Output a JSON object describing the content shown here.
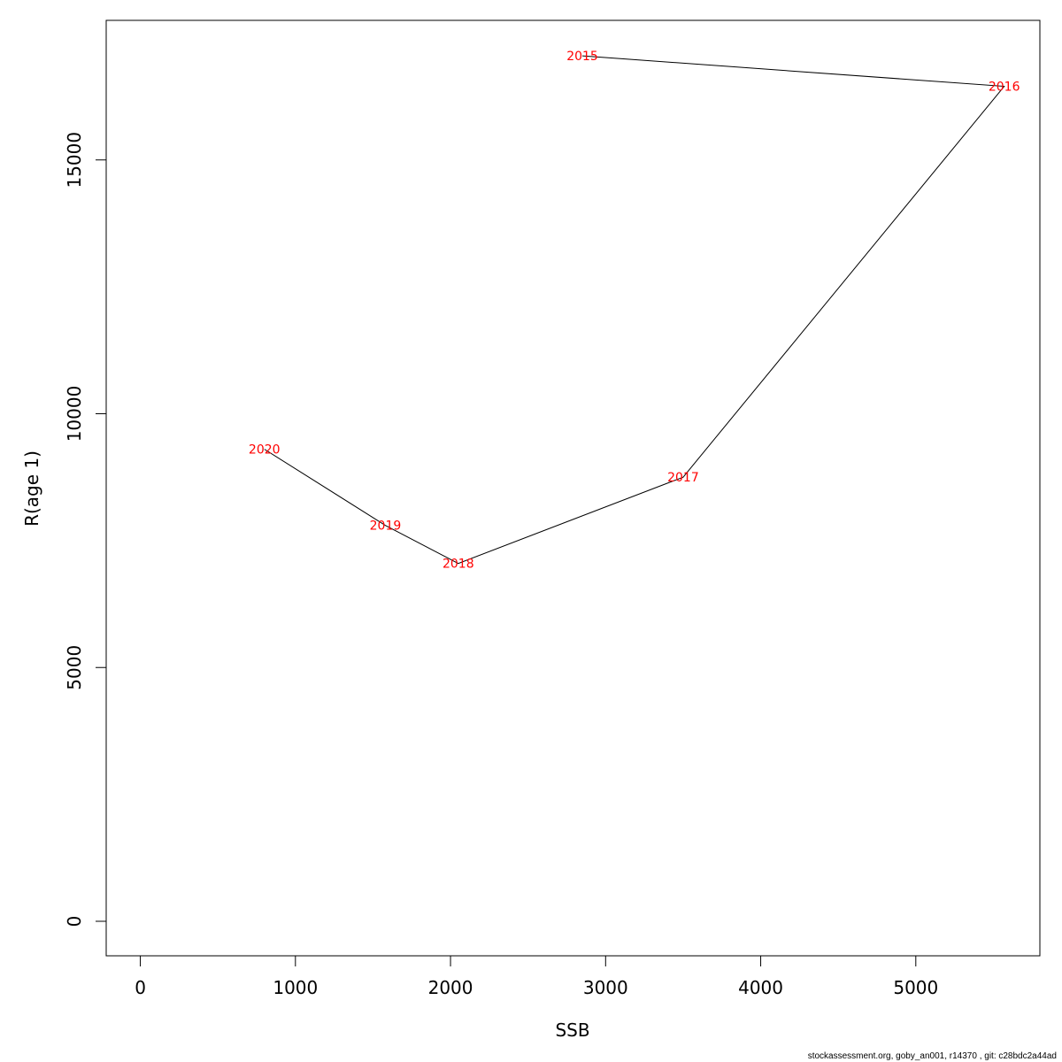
{
  "chart_data": {
    "type": "line",
    "title": "",
    "xlabel": "SSB",
    "ylabel": "R(age 1)",
    "xlim": [
      -220,
      5800
    ],
    "ylim": [
      -680,
      17750
    ],
    "x_ticks": [
      0,
      1000,
      2000,
      3000,
      4000,
      5000
    ],
    "y_ticks": [
      0,
      5000,
      10000,
      15000
    ],
    "x_tick_labels": [
      "0",
      "1000",
      "2000",
      "3000",
      "4000",
      "5000"
    ],
    "y_tick_labels": [
      "0",
      "5000",
      "10000",
      "15000"
    ],
    "grid": false,
    "series": [
      {
        "x": [
          2850,
          5570,
          3500,
          2050,
          1580,
          800
        ],
        "y": [
          17050,
          16450,
          8750,
          7050,
          7800,
          9300
        ],
        "point_labels": [
          "2015",
          "2016",
          "2017",
          "2018",
          "2019",
          "2020"
        ],
        "line_color": "#000000",
        "label_color": "#ff0000"
      }
    ]
  },
  "footer": "stockassessment.org, goby_an001, r14370 , git: c28bdc2a44ad"
}
